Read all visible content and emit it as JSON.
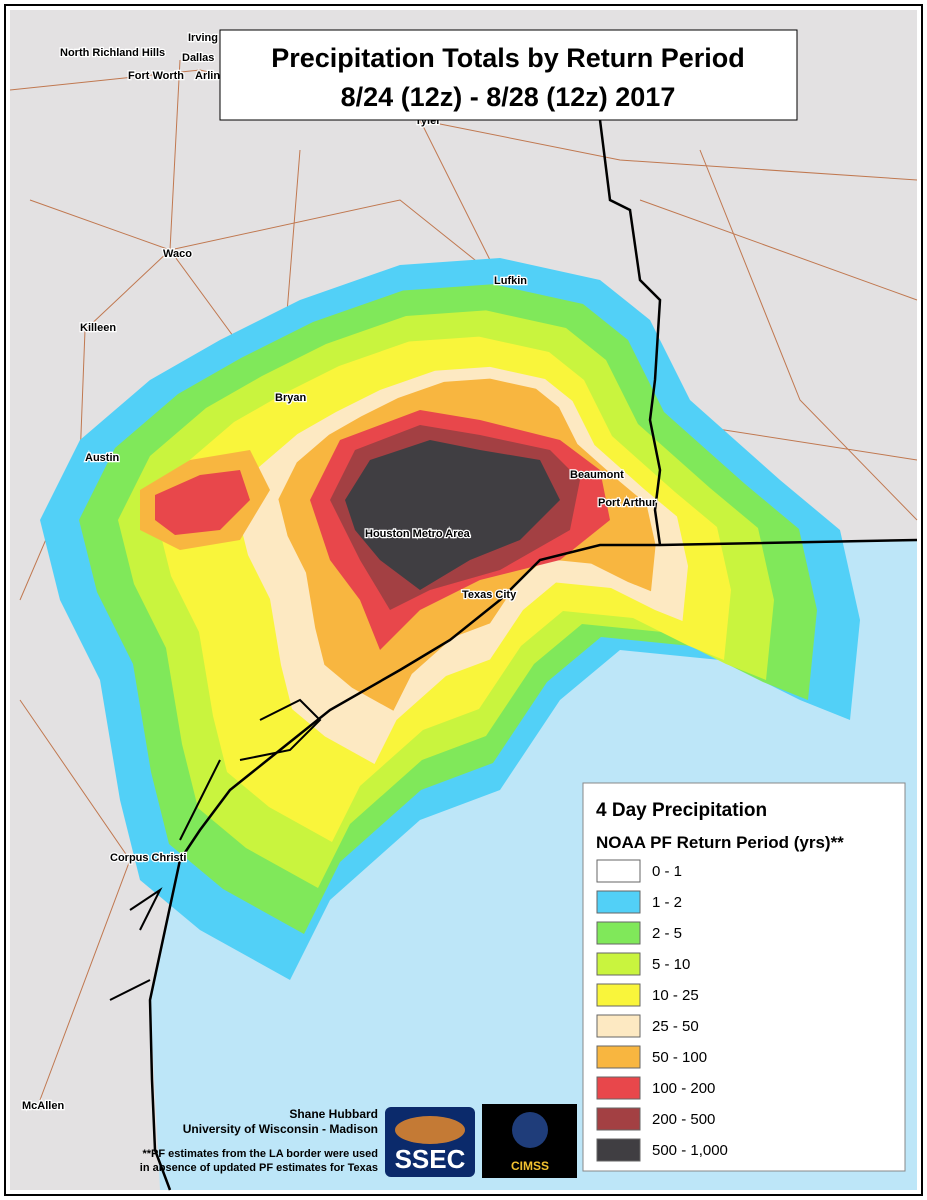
{
  "header": {
    "title": "Precipitation Totals by Return Period",
    "subtitle": "8/24 (12z) - 8/28 (12z) 2017"
  },
  "cities": [
    {
      "label": "North Richland Hills"
    },
    {
      "label": "Irving"
    },
    {
      "label": "Dallas"
    },
    {
      "label": "Fort Worth"
    },
    {
      "label": "Arlin"
    },
    {
      "label": "Tyler"
    },
    {
      "label": "Waco"
    },
    {
      "label": "Lufkin"
    },
    {
      "label": "Killeen"
    },
    {
      "label": "Bryan"
    },
    {
      "label": "Austin"
    },
    {
      "label": "Beaumont"
    },
    {
      "label": "Port Arthur"
    },
    {
      "label": "Houston Metro Area"
    },
    {
      "label": "Texas City"
    },
    {
      "label": "Corpus Christi"
    },
    {
      "label": "McAllen"
    }
  ],
  "legend": {
    "title": "4 Day Precipitation",
    "subtitle": "NOAA PF Return Period (yrs)**",
    "items": [
      {
        "label": "0 - 1",
        "color": "#ffffff"
      },
      {
        "label": "1 - 2",
        "color": "#52d0f7"
      },
      {
        "label": "2 - 5",
        "color": "#80e85a"
      },
      {
        "label": "5 - 10",
        "color": "#c9f43e"
      },
      {
        "label": "10 - 25",
        "color": "#f9f53b"
      },
      {
        "label": "25 - 50",
        "color": "#fde9c2"
      },
      {
        "label": "50 - 100",
        "color": "#f8b640"
      },
      {
        "label": "100 - 200",
        "color": "#e8474b"
      },
      {
        "label": "200 - 500",
        "color": "#a34043"
      },
      {
        "label": "500 - 1,000",
        "color": "#403e42"
      }
    ]
  },
  "credits": {
    "author": "Shane Hubbard",
    "affiliation": "University of Wisconsin - Madison",
    "footnote": [
      "**PF estimates from the LA border were used",
      "in absence of updated PF estimates for Texas"
    ]
  },
  "logos": {
    "ssec": "SSEC",
    "cimss": "CIMSS"
  }
}
